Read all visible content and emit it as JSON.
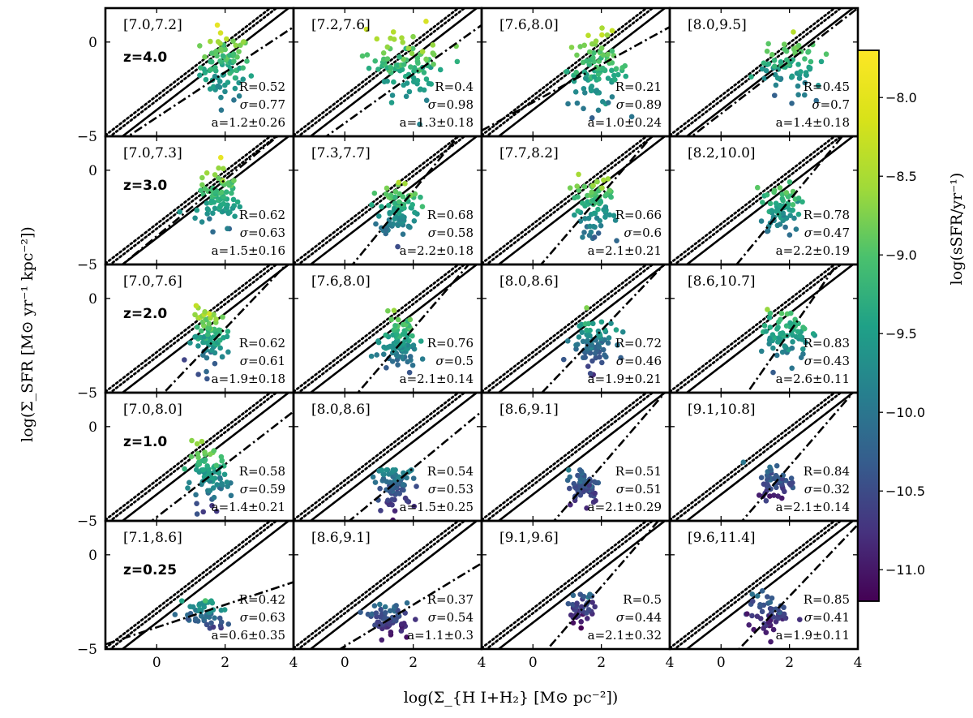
{
  "chart_data": {
    "type": "scatter",
    "x_axis": {
      "label": "log(Σ_{H I+H₂} [M⊙ pc⁻²])",
      "range": [
        -1.5,
        4.0
      ],
      "ticks": [
        0,
        2,
        4
      ],
      "tick_labels": [
        "0",
        "2",
        "4"
      ]
    },
    "y_axis": {
      "label": "log(Σ_SFR [M⊙ yr⁻¹ kpc⁻²])",
      "range": [
        -5.0,
        1.8
      ],
      "ticks": [
        0,
        -5
      ],
      "tick_labels": [
        "0",
        "−5"
      ]
    },
    "colorbar": {
      "label": "log(sSFR/yr⁻¹)",
      "range": [
        -11.2,
        -7.7
      ],
      "ticks": [
        -8.0,
        -8.5,
        -9.0,
        -9.5,
        -10.0,
        -10.5,
        -11.0
      ],
      "tick_labels": [
        "−8.0",
        "−8.5",
        "−9.0",
        "−9.5",
        "−10.0",
        "−10.5",
        "−11.0"
      ],
      "colormap": "viridis"
    },
    "reference_lines": [
      {
        "style": "solid",
        "slope": 1.4,
        "intercept": -3.6
      },
      {
        "style": "dotted",
        "slope": 1.4,
        "intercept": -3.1
      },
      {
        "style": "dotted",
        "slope": 1.4,
        "intercept": -2.85
      }
    ],
    "rows": [
      {
        "redshift": "z=4.0",
        "panels": [
          {
            "range": "[7.0,7.2]",
            "R": "R=0.52",
            "sigma": "0.77",
            "a": "a=1.2±0.26",
            "slope": 1.2,
            "intercept": -4.0,
            "cx": 2.0,
            "cy": -1.3,
            "sx": 0.45,
            "sy": 1.1,
            "n": 85,
            "ytop": 1.2,
            "cbot": -10.0,
            "ctop": -7.8
          },
          {
            "range": "[7.2,7.6]",
            "R": "R=0.4",
            "sigma": "0.98",
            "a": "a=1.3±0.18",
            "slope": 1.3,
            "intercept": -4.3,
            "cx": 1.9,
            "cy": -1.3,
            "sx": 0.75,
            "sy": 1.1,
            "n": 95,
            "ytop": 1.2,
            "cbot": -9.8,
            "ctop": -7.8
          },
          {
            "range": "[7.6,8.0]",
            "R": "R=0.21",
            "sigma": "0.89",
            "a": "a=1.0±0.24",
            "slope": 1.0,
            "intercept": -3.2,
            "cx": 1.9,
            "cy": -1.5,
            "sx": 0.55,
            "sy": 1.2,
            "n": 95,
            "ytop": 1.3,
            "cbot": -10.0,
            "ctop": -7.8
          },
          {
            "range": "[8.0,9.5]",
            "R": "R=0.45",
            "sigma": "0.7",
            "a": "a=1.4±0.18",
            "slope": 1.4,
            "intercept": -3.8,
            "cx": 2.0,
            "cy": -1.2,
            "sx": 0.55,
            "sy": 0.9,
            "n": 70,
            "ytop": 0.6,
            "cbot": -10.0,
            "ctop": -8.1
          }
        ]
      },
      {
        "redshift": "z=3.0",
        "panels": [
          {
            "range": "[7.0,7.3]",
            "R": "R=0.62",
            "sigma": "0.63",
            "a": "a=1.5±0.16",
            "slope": 1.5,
            "intercept": -3.5,
            "cx": 1.8,
            "cy": -1.6,
            "sx": 0.35,
            "sy": 0.9,
            "n": 85,
            "ytop": 0.8,
            "cbot": -10.0,
            "ctop": -7.8
          },
          {
            "range": "[7.3,7.7]",
            "R": "R=0.68",
            "sigma": "0.58",
            "a": "a=2.2±0.18",
            "slope": 2.2,
            "intercept": -5.5,
            "cx": 1.6,
            "cy": -2.0,
            "sx": 0.35,
            "sy": 0.9,
            "n": 85,
            "ytop": 0.2,
            "cbot": -10.3,
            "ctop": -7.8
          },
          {
            "range": "[7.7,8.2]",
            "R": "R=0.66",
            "sigma": "0.6",
            "a": "a=2.1±0.21",
            "slope": 2.1,
            "intercept": -5.5,
            "cx": 1.8,
            "cy": -2.0,
            "sx": 0.4,
            "sy": 1.0,
            "n": 80,
            "ytop": 0.4,
            "cbot": -10.3,
            "ctop": -7.8
          },
          {
            "range": "[8.2,10.0]",
            "R": "R=0.78",
            "sigma": "0.47",
            "a": "a=2.2±0.19",
            "slope": 2.2,
            "intercept": -6.0,
            "cx": 1.8,
            "cy": -2.0,
            "sx": 0.35,
            "sy": 0.8,
            "n": 65,
            "ytop": -0.3,
            "cbot": -10.1,
            "ctop": -8.3
          }
        ]
      },
      {
        "redshift": "z=2.0",
        "panels": [
          {
            "range": "[7.0,7.6]",
            "R": "R=0.62",
            "sigma": "0.61",
            "a": "a=1.9±0.18",
            "slope": 1.9,
            "intercept": -5.4,
            "cx": 1.6,
            "cy": -2.0,
            "sx": 0.35,
            "sy": 0.9,
            "n": 85,
            "ytop": -0.2,
            "cbot": -10.3,
            "ctop": -7.8
          },
          {
            "range": "[7.6,8.0]",
            "R": "R=0.76",
            "sigma": "0.5",
            "a": "a=2.1±0.14",
            "slope": 2.1,
            "intercept": -5.8,
            "cx": 1.6,
            "cy": -2.4,
            "sx": 0.35,
            "sy": 0.8,
            "n": 90,
            "ytop": -0.3,
            "cbot": -10.4,
            "ctop": -8.0
          },
          {
            "range": "[8.0,8.6]",
            "R": "R=0.72",
            "sigma": "0.46",
            "a": "a=1.9±0.21",
            "slope": 1.9,
            "intercept": -5.5,
            "cx": 1.7,
            "cy": -2.4,
            "sx": 0.4,
            "sy": 0.8,
            "n": 80,
            "ytop": 0.8,
            "cbot": -10.8,
            "ctop": -7.8
          },
          {
            "range": "[8.6,10.7]",
            "R": "R=0.83",
            "sigma": "0.43",
            "a": "a=2.6±0.11",
            "slope": 2.6,
            "intercept": -7.0,
            "cx": 1.9,
            "cy": -2.0,
            "sx": 0.4,
            "sy": 0.8,
            "n": 70,
            "ytop": 0.0,
            "cbot": -10.0,
            "ctop": -8.3
          }
        ]
      },
      {
        "redshift": "z=1.0",
        "panels": [
          {
            "range": "[7.0,8.0]",
            "R": "R=0.58",
            "sigma": "0.59",
            "a": "a=1.4±0.21",
            "slope": 1.4,
            "intercept": -4.8,
            "cx": 1.5,
            "cy": -2.8,
            "sx": 0.4,
            "sy": 0.9,
            "n": 80,
            "ytop": -0.7,
            "cbot": -10.6,
            "ctop": -8.2
          },
          {
            "range": "[8.0,8.6]",
            "R": "R=0.54",
            "sigma": "0.53",
            "a": "a=1.5±0.25",
            "slope": 1.5,
            "intercept": -5.2,
            "cx": 1.5,
            "cy": -3.1,
            "sx": 0.35,
            "sy": 0.7,
            "n": 75,
            "ytop": -2.3,
            "cbot": -10.9,
            "ctop": -9.6
          },
          {
            "range": "[8.6,9.1]",
            "R": "R=0.51",
            "sigma": "0.51",
            "a": "a=2.1±0.29",
            "slope": 2.1,
            "intercept": -6.3,
            "cx": 1.5,
            "cy": -3.1,
            "sx": 0.3,
            "sy": 0.6,
            "n": 60,
            "ytop": -2.3,
            "cbot": -10.8,
            "ctop": -9.9
          },
          {
            "range": "[9.1,10.8]",
            "R": "R=0.84",
            "sigma": "0.32",
            "a": "a=2.1±0.14",
            "slope": 2.1,
            "intercept": -6.3,
            "cx": 1.6,
            "cy": -2.9,
            "sx": 0.35,
            "sy": 0.6,
            "n": 55,
            "ytop": -1.6,
            "cbot": -11.0,
            "ctop": -9.6
          }
        ]
      },
      {
        "redshift": "z=0.25",
        "panels": [
          {
            "range": "[7.1,8.6]",
            "R": "R=0.42",
            "sigma": "0.63",
            "a": "a=0.6±0.35",
            "slope": 0.6,
            "intercept": -3.85,
            "cx": 1.4,
            "cy": -3.2,
            "sx": 0.4,
            "sy": 0.6,
            "n": 50,
            "ytop": -1.8,
            "cbot": -11.0,
            "ctop": -8.5
          },
          {
            "range": "[8.6,9.1]",
            "R": "R=0.37",
            "sigma": "0.54",
            "a": "a=1.1±0.3",
            "slope": 1.1,
            "intercept": -4.85,
            "cx": 1.3,
            "cy": -3.4,
            "sx": 0.35,
            "sy": 0.5,
            "n": 60,
            "ytop": -2.3,
            "cbot": -11.1,
            "ctop": -9.7
          },
          {
            "range": "[9.1,9.6]",
            "R": "R=0.5",
            "sigma": "0.44",
            "a": "a=2.1±0.32",
            "slope": 2.1,
            "intercept": -5.9,
            "cx": 1.4,
            "cy": -2.9,
            "sx": 0.25,
            "sy": 0.5,
            "n": 45,
            "ytop": -2.1,
            "cbot": -11.1,
            "ctop": -10.2
          },
          {
            "range": "[9.6,11.4]",
            "R": "R=0.85",
            "sigma": "0.41",
            "a": "a=1.9±0.11",
            "slope": 1.9,
            "intercept": -6.0,
            "cx": 1.4,
            "cy": -3.2,
            "sx": 0.4,
            "sy": 0.7,
            "n": 55,
            "ytop": -1.5,
            "cbot": -11.2,
            "ctop": -9.8
          }
        ]
      }
    ]
  }
}
